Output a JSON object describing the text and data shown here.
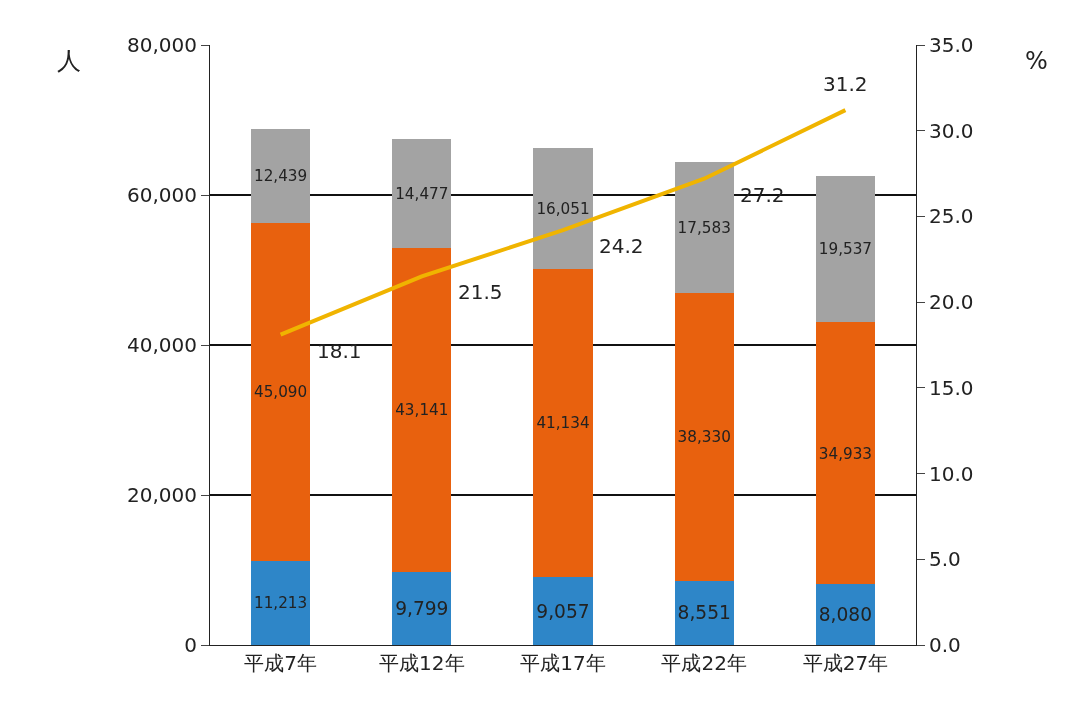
{
  "chart_data": {
    "type": "bar",
    "stacked": true,
    "ylabel": "人",
    "y2label": "%",
    "categories": [
      "平成7年",
      "平成12年",
      "平成17年",
      "平成22年",
      "平成27年"
    ],
    "series": [
      {
        "color": "#2e86c8",
        "values": [
          11213,
          9799,
          9057,
          8551,
          8080
        ],
        "value_labels": [
          "11,213",
          "9,799",
          "9,057",
          "8,551",
          "8,080"
        ]
      },
      {
        "color": "#e8610e",
        "values": [
          45090,
          43141,
          41134,
          38330,
          34933
        ],
        "value_labels": [
          "45,090",
          "43,141",
          "41,134",
          "38,330",
          "34,933"
        ]
      },
      {
        "color": "#a3a3a3",
        "values": [
          12439,
          14477,
          16051,
          17583,
          19537
        ],
        "value_labels": [
          "12,439",
          "14,477",
          "16,051",
          "17,583",
          "19,537"
        ]
      },
      {
        "type": "line",
        "axis": "y2",
        "color": "#f0b400",
        "values": [
          18.1,
          21.5,
          24.2,
          27.2,
          31.2
        ],
        "value_labels": [
          "18.1",
          "21.5",
          "24.2",
          "27.2",
          "31.2"
        ]
      }
    ],
    "ylim": [
      0,
      80000
    ],
    "yticks": [
      0,
      {
        "value": 20000,
        "label": "20,000"
      },
      {
        "value": 40000,
        "label": "40,000"
      },
      {
        "value": 60000,
        "label": "60,000"
      },
      {
        "value": 80000,
        "label": "80,000"
      }
    ],
    "y2lim": [
      0,
      35
    ],
    "y2ticks": [
      {
        "value": 0,
        "label": "0.0"
      },
      {
        "value": 5,
        "label": "5.0"
      },
      {
        "value": 10,
        "label": "10.0"
      },
      {
        "value": 15,
        "label": "15.0"
      },
      {
        "value": 20,
        "label": "20.0"
      },
      {
        "value": 25,
        "label": "25.0"
      },
      {
        "value": 30,
        "label": "30.0"
      },
      {
        "value": 35,
        "label": "35.0"
      }
    ],
    "grid": "y",
    "legend": false
  }
}
